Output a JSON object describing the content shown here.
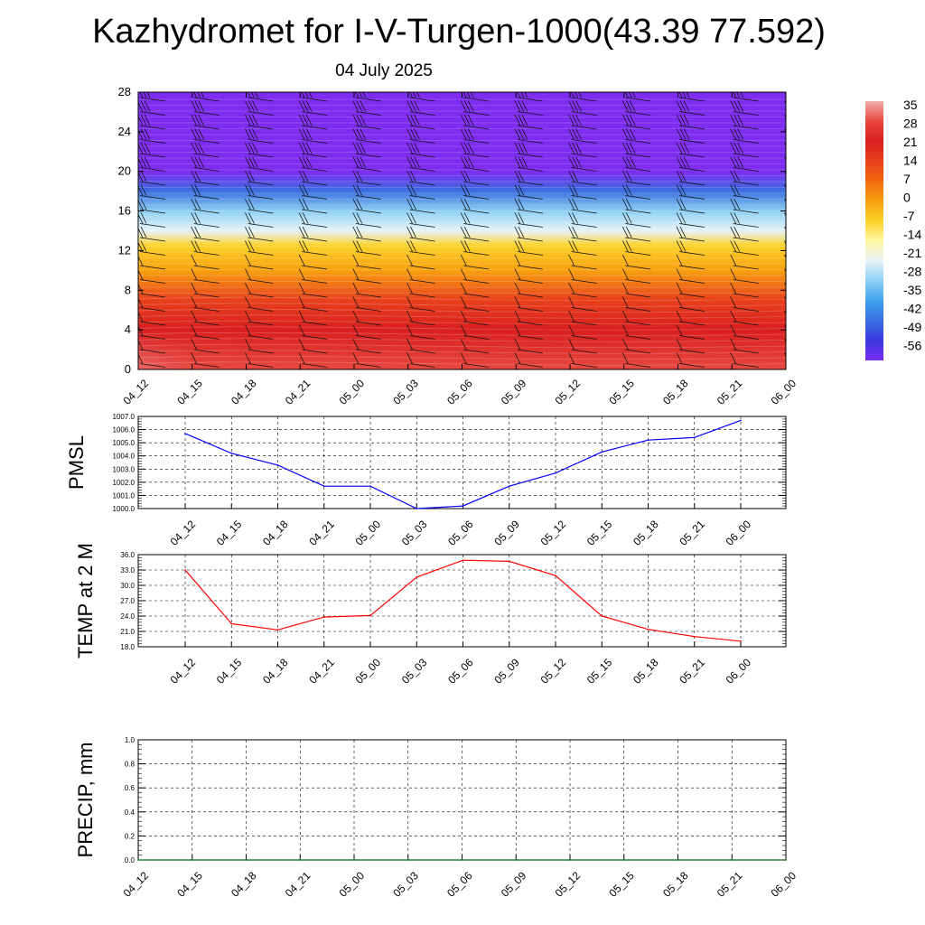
{
  "header": {
    "title": "Kazhydromet for I-V-Turgen-1000(43.39 77.592)",
    "date": "04 July 2025"
  },
  "chart_data": [
    {
      "type": "heatmap",
      "name": "temperature-height cross section",
      "x_ticks": [
        "04_12",
        "04_15",
        "04_18",
        "04_21",
        "05_00",
        "05_03",
        "05_06",
        "05_09",
        "05_12",
        "05_15",
        "05_18",
        "05_21",
        "06_00"
      ],
      "y_ticks": [
        0,
        4,
        8,
        12,
        16,
        20,
        24,
        28
      ],
      "ylim": [
        0,
        28
      ],
      "colorbar": {
        "labels": [
          35,
          28,
          21,
          14,
          7,
          0,
          -7,
          -14,
          -21,
          -28,
          -35,
          -42,
          -49,
          -56
        ],
        "colors": [
          "#f2aeae",
          "#e8483f",
          "#d81f1f",
          "#e8401c",
          "#f16a0f",
          "#f8a00f",
          "#fbd22a",
          "#fff6a0",
          "#e8f3f8",
          "#8ed0f5",
          "#3ea3ee",
          "#3b6fe0",
          "#3a3ae0",
          "#7d2cf0"
        ]
      },
      "field_bands": [
        {
          "height": 0,
          "value": 30
        },
        {
          "height": 4,
          "value": 27
        },
        {
          "height": 7,
          "value": 18
        },
        {
          "height": 10,
          "value": 5
        },
        {
          "height": 12.5,
          "value": -7
        },
        {
          "height": 14,
          "value": -16
        },
        {
          "height": 16,
          "value": -28
        },
        {
          "height": 18,
          "value": -42
        },
        {
          "height": 20,
          "value": -54
        },
        {
          "height": 22,
          "value": -58
        },
        {
          "height": 28,
          "value": -60
        }
      ],
      "wind_barbs": true
    },
    {
      "type": "line",
      "ylabel": "PMSL",
      "categories": [
        "04_12",
        "04_15",
        "04_18",
        "04_21",
        "05_00",
        "05_03",
        "05_06",
        "05_09",
        "05_12",
        "05_15",
        "05_18",
        "05_21",
        "06_00"
      ],
      "values": [
        1005.7,
        1004.2,
        1003.3,
        1001.7,
        1001.7,
        1000.0,
        1000.2,
        1001.7,
        1002.7,
        1004.3,
        1005.2,
        1005.4,
        1006.7
      ],
      "ylim": [
        1000.0,
        1007.0
      ],
      "y_ticks": [
        "1000.0",
        "1001.0",
        "1002.0",
        "1003.0",
        "1004.0",
        "1005.0",
        "1006.0",
        "1007.0"
      ],
      "color": "#0000ff",
      "grid": true
    },
    {
      "type": "line",
      "ylabel": "TEMP at 2 M",
      "categories": [
        "04_12",
        "04_15",
        "04_18",
        "04_21",
        "05_00",
        "05_03",
        "05_06",
        "05_09",
        "05_12",
        "05_15",
        "05_18",
        "05_21",
        "06_00"
      ],
      "values": [
        33.0,
        22.5,
        21.3,
        23.8,
        24.1,
        31.6,
        34.9,
        34.7,
        31.9,
        24.0,
        21.4,
        20.0,
        19.1
      ],
      "ylim": [
        18.0,
        36.0
      ],
      "y_ticks": [
        "18.0",
        "21.0",
        "24.0",
        "27.0",
        "30.0",
        "33.0",
        "36.0"
      ],
      "color": "#ff0000",
      "grid": true
    },
    {
      "type": "line",
      "ylabel": "PRECIP, mm",
      "categories": [
        "04_12",
        "04_15",
        "04_18",
        "04_21",
        "05_00",
        "05_03",
        "05_06",
        "05_09",
        "05_12",
        "05_15",
        "05_18",
        "05_21",
        "06_00"
      ],
      "values": [
        0,
        0,
        0,
        0,
        0,
        0,
        0,
        0,
        0,
        0,
        0,
        0,
        0
      ],
      "ylim": [
        0.0,
        1.0
      ],
      "y_ticks": [
        "0.0",
        "0.2",
        "0.4",
        "0.6",
        "0.8",
        "1.0"
      ],
      "color": "#006400",
      "grid": true
    }
  ]
}
